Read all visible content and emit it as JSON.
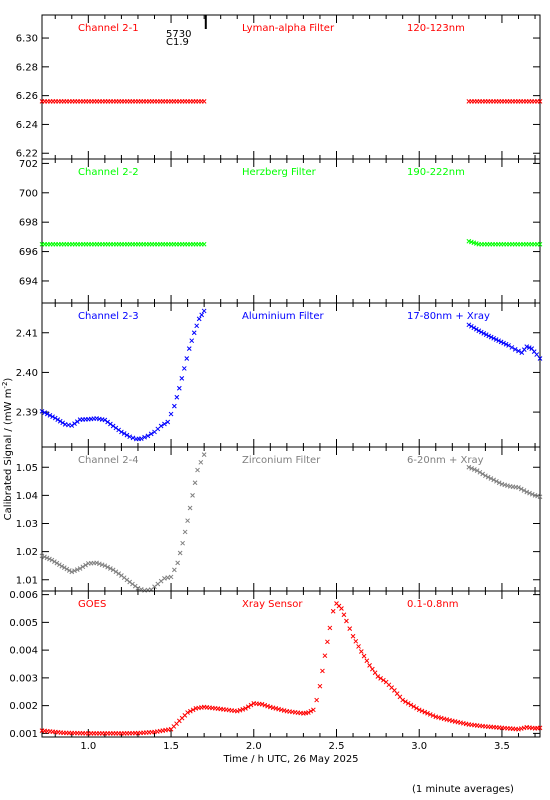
{
  "figure": {
    "ylabel": "Calibrated Signal / (mW m",
    "ylabel_sup": "-2",
    "ylabel_close": ")",
    "xlabel": "Time / h UTC, 26 May 2025",
    "note": "(1 minute averages)",
    "annotation_a": "5730",
    "annotation_b": "C1.9",
    "xlim": [
      0.72,
      3.73
    ],
    "xticks": [
      "1.0",
      "1.5",
      "2.0",
      "2.5",
      "3.0",
      "3.5"
    ],
    "xtick_values": [
      1.0,
      1.5,
      2.0,
      2.5,
      3.0,
      3.5
    ],
    "flare_marker_x": 1.71
  },
  "chart_data": [
    {
      "type": "scatter",
      "label_left": "Channel 2-1",
      "label_mid": "Lyman-alpha Filter",
      "label_right": "120-123nm",
      "color": "#ff0000",
      "marker": "x",
      "ylim": [
        6.216,
        6.316
      ],
      "yticks": [
        "6.22",
        "6.24",
        "6.26",
        "6.28",
        "6.30"
      ],
      "ytick_values": [
        6.22,
        6.24,
        6.26,
        6.28,
        6.3
      ],
      "segments": [
        {
          "x": [
            0.72,
            1.7
          ],
          "y": [
            6.256,
            6.256
          ]
        },
        {
          "x": [
            3.3,
            3.73
          ],
          "y": [
            6.256,
            6.256
          ]
        }
      ]
    },
    {
      "type": "scatter",
      "label_left": "Channel 2-2",
      "label_mid": "Herzberg Filter",
      "label_right": "190-222nm",
      "color": "#00ff00",
      "marker": "x",
      "ylim": [
        692.5,
        702.3
      ],
      "yticks": [
        "694",
        "696",
        "698",
        "700",
        "702"
      ],
      "ytick_values": [
        694,
        696,
        698,
        700,
        702
      ],
      "segments": [
        {
          "x": [
            0.72,
            1.7
          ],
          "y": [
            696.5,
            696.5
          ]
        },
        {
          "x": [
            3.3,
            3.33,
            3.36,
            3.73
          ],
          "y": [
            696.7,
            696.6,
            696.5,
            696.5
          ]
        }
      ]
    },
    {
      "type": "scatter",
      "label_left": "Channel 2-3",
      "label_mid": "Aluminium Filter",
      "label_right": "17-80nm + Xray",
      "color": "#0000ff",
      "marker": "x",
      "ylim": [
        2.3812,
        2.4175
      ],
      "yticks": [
        "2.39",
        "2.40",
        "2.41"
      ],
      "ytick_values": [
        2.39,
        2.4,
        2.41
      ],
      "segments": [
        {
          "x": [
            0.72,
            0.8,
            0.86,
            0.9,
            0.95,
            1.0,
            1.05,
            1.1,
            1.15,
            1.2,
            1.25,
            1.29,
            1.32,
            1.36,
            1.4,
            1.44,
            1.48,
            1.52,
            1.55,
            1.58,
            1.61,
            1.64,
            1.67,
            1.7
          ],
          "y": [
            2.3902,
            2.3885,
            2.3869,
            2.3866,
            2.3881,
            2.3882,
            2.3884,
            2.388,
            2.3865,
            2.385,
            2.3838,
            2.3832,
            2.3833,
            2.384,
            2.385,
            2.3865,
            2.3875,
            2.3915,
            2.396,
            2.401,
            2.406,
            2.41,
            2.4135,
            2.4155
          ]
        },
        {
          "x": [
            3.3,
            3.36,
            3.42,
            3.48,
            3.54,
            3.58,
            3.62,
            3.65,
            3.68,
            3.71,
            3.73
          ],
          "y": [
            2.412,
            2.4105,
            2.4092,
            2.408,
            2.4068,
            2.4058,
            2.405,
            2.4065,
            2.406,
            2.4045,
            2.4035
          ]
        }
      ]
    },
    {
      "type": "scatter",
      "label_left": "Channel 2-4",
      "label_mid": "Zirconium Filter",
      "label_right": "6-20nm + Xray",
      "color": "#808080",
      "marker": "x",
      "ylim": [
        1.006,
        1.0572
      ],
      "yticks": [
        "1.01",
        "1.02",
        "1.03",
        "1.04",
        "1.05"
      ],
      "ytick_values": [
        1.01,
        1.02,
        1.03,
        1.04,
        1.05
      ],
      "segments": [
        {
          "x": [
            0.72,
            0.78,
            0.84,
            0.9,
            0.95,
            1.0,
            1.05,
            1.1,
            1.15,
            1.2,
            1.25,
            1.3,
            1.34,
            1.38,
            1.42,
            1.46,
            1.5,
            1.54,
            1.57,
            1.6,
            1.63,
            1.66,
            1.7
          ],
          "y": [
            1.0185,
            1.017,
            1.0148,
            1.0128,
            1.014,
            1.0158,
            1.016,
            1.015,
            1.0135,
            1.0115,
            1.0092,
            1.007,
            1.0062,
            1.0065,
            1.0085,
            1.0105,
            1.011,
            1.016,
            1.023,
            1.031,
            1.04,
            1.049,
            1.0545
          ]
        },
        {
          "x": [
            3.3,
            3.35,
            3.4,
            3.45,
            3.5,
            3.55,
            3.6,
            3.65,
            3.7,
            3.73
          ],
          "y": [
            1.05,
            1.0488,
            1.047,
            1.0455,
            1.044,
            1.0432,
            1.0428,
            1.0412,
            1.04,
            1.0395
          ]
        }
      ]
    },
    {
      "type": "scatter",
      "label_left": "GOES",
      "label_mid": "Xray Sensor",
      "label_right": "0.1-0.8nm",
      "color": "#ff0000",
      "marker": "x",
      "ylim": [
        0.00087,
        0.00613
      ],
      "yticks": [
        "0.001",
        "0.002",
        "0.003",
        "0.004",
        "0.005",
        "0.006"
      ],
      "ytick_values": [
        0.001,
        0.002,
        0.003,
        0.004,
        0.005,
        0.006
      ],
      "segments": [
        {
          "x": [
            0.72,
            0.85,
            1.0,
            1.1,
            1.2,
            1.3,
            1.4,
            1.5,
            1.55,
            1.6,
            1.65,
            1.7,
            1.8,
            1.9,
            1.95,
            2.0,
            2.05,
            2.1,
            2.2,
            2.3,
            2.33,
            2.36,
            2.38,
            2.4,
            2.43,
            2.46,
            2.48,
            2.5,
            2.53,
            2.56,
            2.6,
            2.65,
            2.7,
            2.75,
            2.8,
            2.85,
            2.9,
            3.0,
            3.1,
            3.2,
            3.3,
            3.4,
            3.5,
            3.6,
            3.65,
            3.7,
            3.73
          ],
          "y": [
            0.0011,
            0.00102,
            0.001,
            0.001,
            0.001,
            0.00101,
            0.00105,
            0.00115,
            0.00145,
            0.00175,
            0.0019,
            0.00195,
            0.00188,
            0.0018,
            0.0019,
            0.00208,
            0.00205,
            0.00195,
            0.0018,
            0.00172,
            0.00175,
            0.00185,
            0.0022,
            0.0027,
            0.0038,
            0.0048,
            0.0054,
            0.00568,
            0.0055,
            0.00505,
            0.0045,
            0.00395,
            0.00345,
            0.00305,
            0.00285,
            0.00255,
            0.0022,
            0.00185,
            0.0016,
            0.00145,
            0.00132,
            0.00125,
            0.0012,
            0.00115,
            0.00122,
            0.00118,
            0.0012
          ]
        }
      ]
    }
  ]
}
